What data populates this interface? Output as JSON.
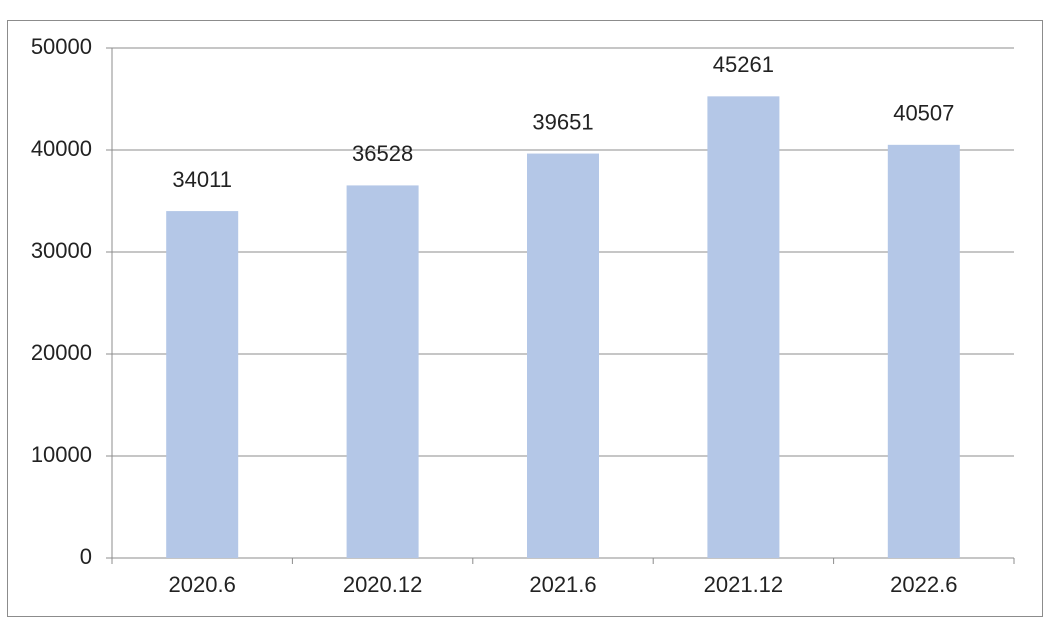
{
  "chart_data": {
    "type": "bar",
    "categories": [
      "2020.6",
      "2020.12",
      "2021.6",
      "2021.12",
      "2022.6"
    ],
    "values": [
      34011,
      36528,
      39651,
      45261,
      40507
    ],
    "color": "#b4c7e7",
    "ylim": [
      0,
      50000
    ],
    "yticks": [
      0,
      10000,
      20000,
      30000,
      40000,
      50000
    ],
    "grid": true
  }
}
